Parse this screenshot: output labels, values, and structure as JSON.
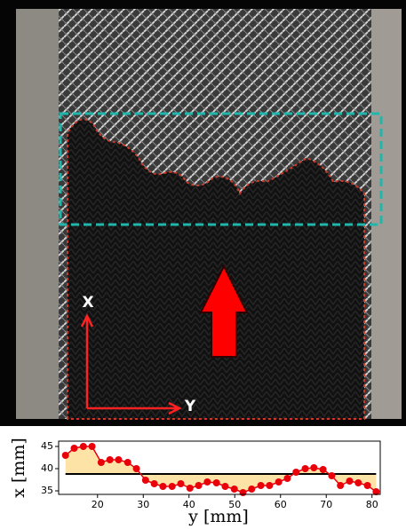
{
  "photo": {
    "x_arrow_label": "X",
    "y_arrow_label": "Y"
  },
  "chart_data": {
    "type": "line",
    "x_label": "y [mm]",
    "y_label": "x [mm]",
    "x": [
      13.0,
      14.9,
      16.9,
      18.8,
      20.8,
      22.7,
      24.6,
      26.6,
      28.5,
      30.5,
      32.4,
      34.3,
      36.3,
      38.2,
      40.2,
      42.1,
      44.0,
      46.0,
      47.9,
      49.9,
      51.8,
      53.7,
      55.7,
      57.6,
      59.6,
      61.5,
      63.4,
      65.4,
      67.3,
      69.3,
      71.2,
      73.1,
      75.1,
      77.0,
      79.0,
      80.9
    ],
    "series": [
      {
        "color": "#e8000b",
        "values": [
          43,
          44.6,
          45,
          45,
          41.4,
          42,
          42,
          41.4,
          40,
          37.4,
          36.6,
          36,
          36,
          36.6,
          35.6,
          36.2,
          37,
          36.8,
          36,
          35.4,
          34.6,
          35.4,
          36.2,
          36.2,
          37,
          37.8,
          39.2,
          40,
          40.2,
          39.8,
          38.4,
          36.2,
          37.2,
          36.8,
          36.2,
          34.8
        ]
      }
    ],
    "mean_line": 38.8,
    "mean_color": "#000000",
    "fill_color": "#fde4a6",
    "xlim": [
      11.5,
      81.8
    ],
    "ylim": [
      34.2,
      46.2
    ],
    "xticks": [
      20,
      30,
      40,
      50,
      60,
      70,
      80
    ],
    "yticks": [
      35,
      40,
      45
    ]
  }
}
